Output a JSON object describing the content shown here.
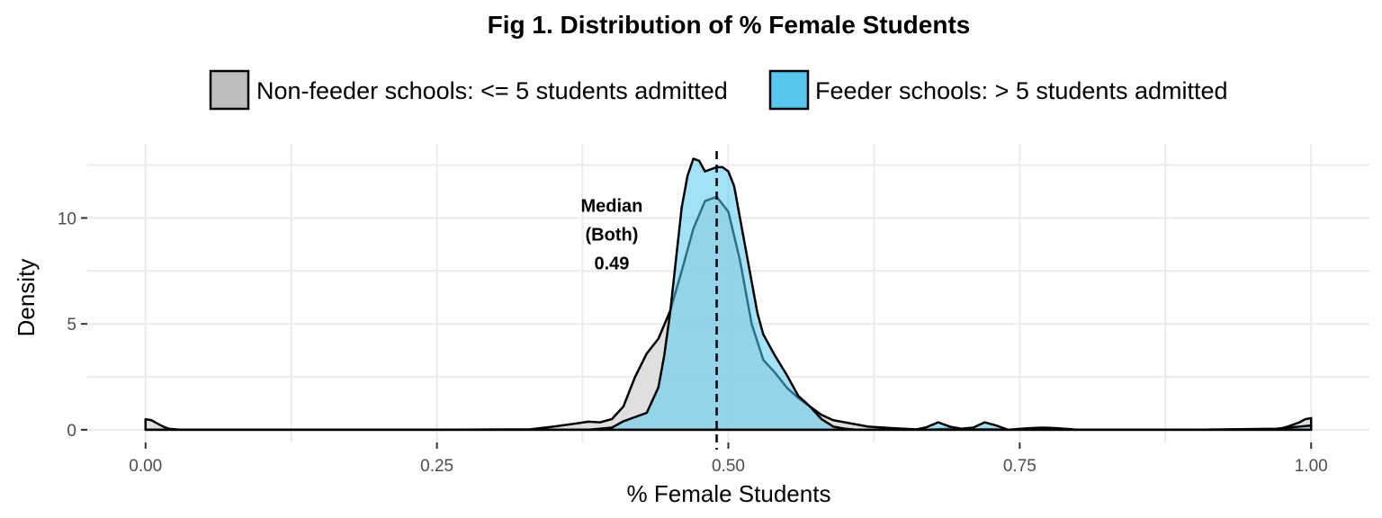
{
  "chart_data": {
    "type": "area",
    "title": "Fig 1. Distribution of % Female Students",
    "xlabel": "% Female Students",
    "ylabel": "Density",
    "xlim": [
      -0.05,
      1.05
    ],
    "ylim": [
      -0.6,
      13.5
    ],
    "x_ticks": [
      0.0,
      0.25,
      0.5,
      0.75,
      1.0
    ],
    "x_tick_labels": [
      "0.00",
      "0.25",
      "0.50",
      "0.75",
      "1.00"
    ],
    "y_ticks": [
      0,
      5,
      10
    ],
    "y_tick_labels": [
      "0",
      "5",
      "10"
    ],
    "grid": true,
    "legend_position": "top",
    "series": [
      {
        "name": "Non-feeder schools: <= 5 students admitted",
        "fill": "#d9d9d9",
        "legend_fill": "#bebebe",
        "x": [
          0.0,
          0.005,
          0.01,
          0.015,
          0.02,
          0.03,
          0.1,
          0.25,
          0.33,
          0.35,
          0.37,
          0.38,
          0.39,
          0.4,
          0.41,
          0.42,
          0.43,
          0.44,
          0.45,
          0.46,
          0.47,
          0.48,
          0.49,
          0.5,
          0.51,
          0.52,
          0.53,
          0.54,
          0.55,
          0.56,
          0.57,
          0.58,
          0.59,
          0.6,
          0.61,
          0.62,
          0.64,
          0.66,
          0.67,
          0.68,
          0.69,
          0.7,
          0.71,
          0.72,
          0.73,
          0.74,
          0.75,
          0.76,
          0.77,
          0.78,
          0.79,
          0.8,
          0.9,
          0.97,
          0.98,
          0.99,
          0.995,
          1.0
        ],
        "y": [
          0.5,
          0.45,
          0.3,
          0.15,
          0.05,
          0.0,
          0.0,
          0.0,
          0.02,
          0.15,
          0.3,
          0.38,
          0.35,
          0.5,
          1.1,
          2.5,
          3.6,
          4.3,
          5.6,
          7.5,
          9.5,
          10.8,
          11.0,
          10.3,
          8.0,
          5.0,
          3.3,
          2.7,
          2.0,
          1.5,
          1.1,
          0.7,
          0.45,
          0.35,
          0.25,
          0.15,
          0.08,
          0.02,
          0.0,
          0.03,
          0.05,
          0.05,
          0.02,
          0.03,
          0.02,
          0.0,
          0.04,
          0.08,
          0.1,
          0.08,
          0.04,
          0.0,
          0.0,
          0.0,
          0.15,
          0.35,
          0.5,
          0.55
        ]
      },
      {
        "name": "Feeder schools: > 5 students admitted",
        "fill": "#56c8f0",
        "legend_fill": "#56c8f0",
        "x": [
          0.0,
          0.1,
          0.3,
          0.38,
          0.4,
          0.41,
          0.42,
          0.43,
          0.44,
          0.445,
          0.45,
          0.455,
          0.46,
          0.465,
          0.47,
          0.475,
          0.48,
          0.485,
          0.49,
          0.495,
          0.5,
          0.505,
          0.51,
          0.515,
          0.52,
          0.525,
          0.53,
          0.54,
          0.55,
          0.56,
          0.57,
          0.58,
          0.59,
          0.6,
          0.61,
          0.63,
          0.65,
          0.66,
          0.67,
          0.68,
          0.69,
          0.7,
          0.71,
          0.72,
          0.73,
          0.74,
          0.75,
          0.77,
          0.8,
          0.9,
          0.97,
          0.99,
          1.0
        ],
        "y": [
          0.0,
          0.0,
          0.0,
          0.0,
          0.1,
          0.4,
          0.6,
          0.8,
          2.0,
          3.5,
          5.5,
          8.0,
          10.5,
          12.0,
          12.8,
          12.7,
          12.2,
          12.3,
          12.4,
          12.4,
          12.2,
          11.5,
          10.0,
          8.5,
          7.0,
          5.5,
          4.5,
          3.5,
          2.6,
          1.6,
          1.1,
          0.5,
          0.15,
          0.05,
          0.0,
          0.0,
          0.0,
          0.0,
          0.12,
          0.35,
          0.15,
          0.05,
          0.1,
          0.35,
          0.2,
          0.0,
          0.0,
          0.0,
          0.0,
          0.0,
          0.05,
          0.15,
          0.2
        ]
      }
    ],
    "median_line": {
      "x": 0.49,
      "style": "dashed"
    },
    "annotation": {
      "lines": [
        "Median",
        "(Both)",
        "0.49"
      ],
      "x": 0.4,
      "y": 10.3
    }
  }
}
